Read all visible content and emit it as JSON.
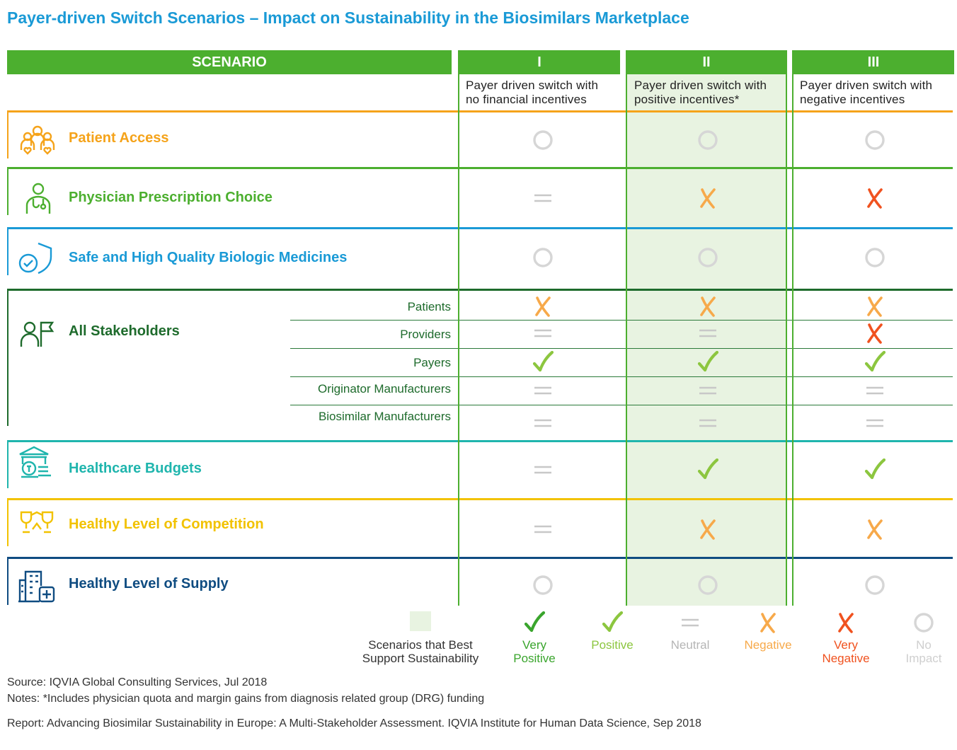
{
  "title": "Payer-driven Switch Scenarios – Impact on Sustainability in the Biosimilars Marketplace",
  "colors": {
    "green_header": "#4caf2f",
    "shade": "#e8f3e1",
    "very_positive": "#3aa52d",
    "positive": "#8cc63f",
    "neutral": "#c8c8c8",
    "negative": "#f7a94a",
    "very_negative": "#f0521f",
    "no_impact": "#d6d6d6"
  },
  "header": {
    "scenario_label": "SCENARIO",
    "columns": [
      {
        "numeral": "I",
        "description_line1": "Payer driven switch with",
        "description_line2": "no financial incentives"
      },
      {
        "numeral": "II",
        "description_line1": "Payer driven switch with",
        "description_line2": "positive incentives*"
      },
      {
        "numeral": "III",
        "description_line1": "Payer driven switch with",
        "description_line2": "negative incentives"
      }
    ]
  },
  "rows": [
    {
      "label": "Patient Access",
      "icon": "patient-group-icon",
      "color": "#f5a31a",
      "ratings": [
        "no_impact",
        "no_impact",
        "no_impact"
      ]
    },
    {
      "label": "Physician Prescription Choice",
      "icon": "physician-icon",
      "color": "#4caf2f",
      "ratings": [
        "neutral",
        "negative",
        "very_negative"
      ]
    },
    {
      "label": "Safe and High Quality Biologic Medicines",
      "icon": "shield-check-icon",
      "color": "#1a9ad6",
      "ratings": [
        "no_impact",
        "no_impact",
        "no_impact"
      ]
    },
    {
      "label": "All Stakeholders",
      "icon": "person-flag-icon",
      "color": "#1e6b2c",
      "subrows": [
        {
          "label": "Patients",
          "ratings": [
            "negative",
            "negative",
            "negative"
          ]
        },
        {
          "label": "Providers",
          "ratings": [
            "neutral",
            "neutral",
            "very_negative"
          ]
        },
        {
          "label": "Payers",
          "ratings": [
            "positive",
            "positive",
            "positive"
          ]
        },
        {
          "label": "Originator Manufacturers",
          "ratings": [
            "neutral",
            "neutral",
            "neutral"
          ]
        },
        {
          "label": "Biosimilar Manufacturers",
          "ratings": [
            "neutral",
            "neutral",
            "neutral"
          ]
        }
      ]
    },
    {
      "label": "Healthcare Budgets",
      "icon": "budget-building-icon",
      "color": "#1fb5ad",
      "ratings": [
        "neutral",
        "positive",
        "positive"
      ]
    },
    {
      "label": "Healthy Level of Competition",
      "icon": "trophy-icon",
      "color": "#f2c200",
      "ratings": [
        "neutral",
        "negative",
        "negative"
      ]
    },
    {
      "label": "Healthy Level of Supply",
      "icon": "hospital-icon",
      "color": "#0f4c81",
      "ratings": [
        "no_impact",
        "no_impact",
        "no_impact"
      ]
    }
  ],
  "legend": {
    "shade_line1": "Scenarios that Best",
    "shade_line2": "Support Sustainability",
    "items": [
      {
        "key": "very_positive",
        "line1": "Very",
        "line2": "Positive"
      },
      {
        "key": "positive",
        "line1": "Positive",
        "line2": ""
      },
      {
        "key": "neutral",
        "line1": "Neutral",
        "line2": ""
      },
      {
        "key": "negative",
        "line1": "Negative",
        "line2": ""
      },
      {
        "key": "very_negative",
        "line1": "Very",
        "line2": "Negative"
      },
      {
        "key": "no_impact",
        "line1": "No",
        "line2": "Impact"
      }
    ]
  },
  "footer": {
    "source": "Source: IQVIA Global Consulting Services, Jul 2018",
    "notes": "Notes: *Includes physician quota and margin gains from diagnosis related group (DRG) funding",
    "report": "Report: Advancing Biosimilar Sustainability in Europe: A Multi-Stakeholder Assessment. IQVIA Institute for Human Data Science, Sep 2018"
  }
}
